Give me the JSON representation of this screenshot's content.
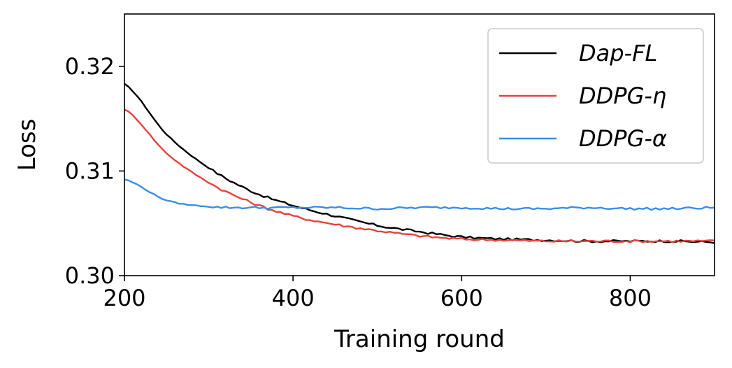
{
  "chart_data": {
    "type": "line",
    "title": "",
    "xlabel": "Training round",
    "ylabel": "Loss",
    "xlim": [
      200,
      900
    ],
    "ylim": [
      0.3,
      0.325
    ],
    "xticks": [
      200,
      400,
      600,
      800
    ],
    "xtick_labels": [
      "200",
      "400",
      "600",
      "800"
    ],
    "yticks": [
      0.3,
      0.31,
      0.32
    ],
    "ytick_labels": [
      "0.30",
      "0.31",
      "0.32"
    ],
    "grid": false,
    "legend_position": "top-right",
    "x": [
      200,
      250,
      300,
      350,
      400,
      450,
      500,
      550,
      600,
      650,
      700,
      750,
      800,
      850,
      900
    ],
    "series": [
      {
        "name": "Dap-FL",
        "color": "#000000",
        "values": [
          0.3183,
          0.3135,
          0.3103,
          0.3081,
          0.3067,
          0.3057,
          0.3048,
          0.3042,
          0.3037,
          0.3035,
          0.3034,
          0.3033,
          0.3033,
          0.3033,
          0.3032
        ]
      },
      {
        "name": "DDPG-η",
        "color": "#e8413c",
        "values": [
          0.3159,
          0.3117,
          0.3089,
          0.307,
          0.3057,
          0.3049,
          0.3043,
          0.3038,
          0.3035,
          0.3034,
          0.3033,
          0.3033,
          0.3033,
          0.3033,
          0.3033
        ]
      },
      {
        "name": "DDPG-α",
        "color": "#3b8ee8",
        "values": [
          0.3092,
          0.3072,
          0.3066,
          0.3065,
          0.3065,
          0.3065,
          0.3064,
          0.3065,
          0.3065,
          0.3064,
          0.3064,
          0.3065,
          0.3064,
          0.3064,
          0.3065
        ]
      }
    ]
  }
}
